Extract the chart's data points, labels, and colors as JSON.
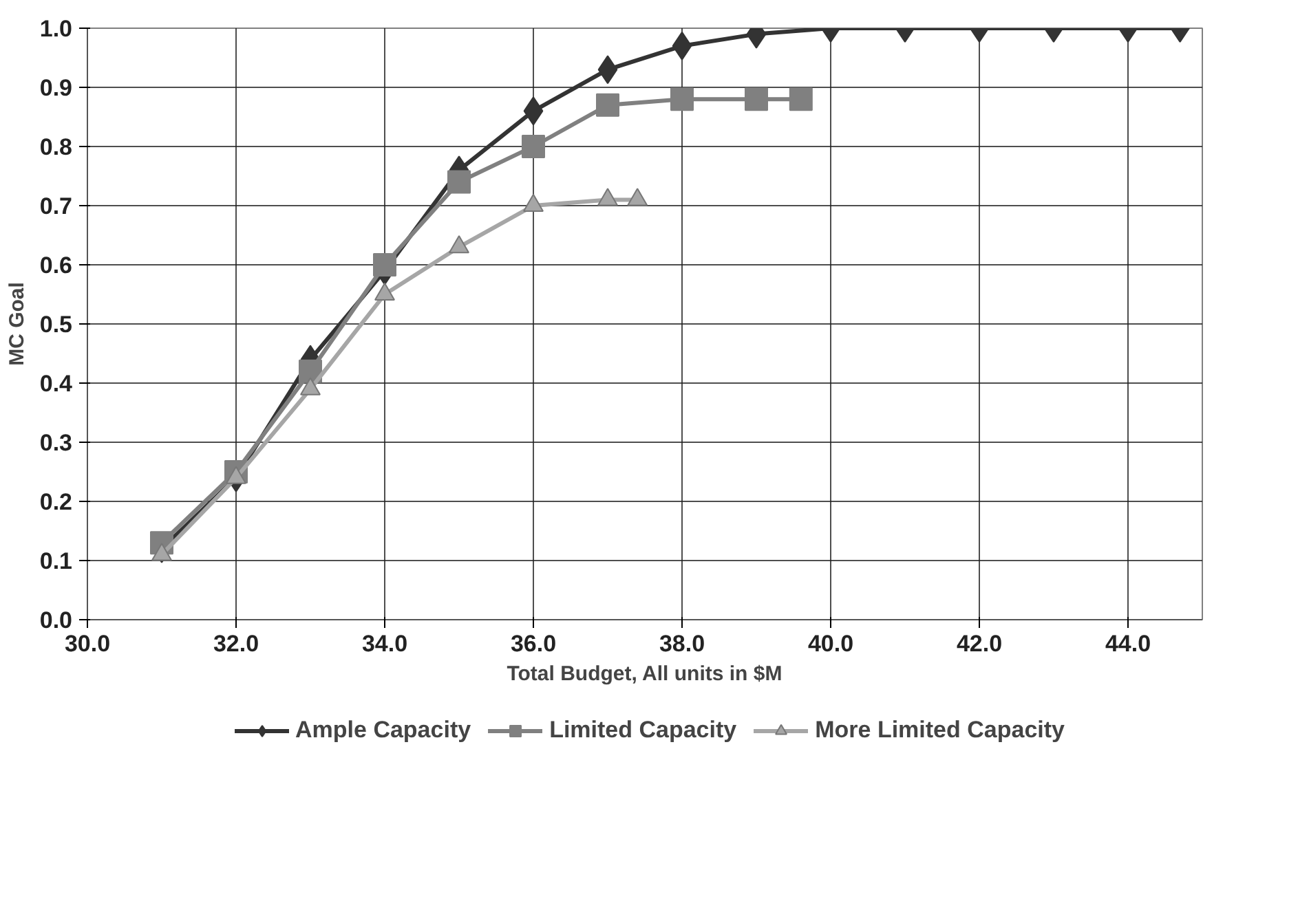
{
  "chart_data": {
    "type": "line",
    "xlabel": "Total Budget, All units in $M",
    "ylabel": "MC Goal",
    "xlim": [
      30,
      45
    ],
    "ylim": [
      0,
      1
    ],
    "xticks": [
      {
        "value": 30,
        "label": "30.0"
      },
      {
        "value": 32,
        "label": "32.0"
      },
      {
        "value": 34,
        "label": "34.0"
      },
      {
        "value": 36,
        "label": "36.0"
      },
      {
        "value": 38,
        "label": "38.0"
      },
      {
        "value": 40,
        "label": "40.0"
      },
      {
        "value": 42,
        "label": "42.0"
      },
      {
        "value": 44,
        "label": "44.0"
      }
    ],
    "yticks": [
      {
        "value": 0,
        "label": "0.0"
      },
      {
        "value": 0.1,
        "label": "0.1"
      },
      {
        "value": 0.2,
        "label": "0.2"
      },
      {
        "value": 0.3,
        "label": "0.3"
      },
      {
        "value": 0.4,
        "label": "0.4"
      },
      {
        "value": 0.5,
        "label": "0.5"
      },
      {
        "value": 0.6,
        "label": "0.6"
      },
      {
        "value": 0.7,
        "label": "0.7"
      },
      {
        "value": 0.8,
        "label": "0.8"
      },
      {
        "value": 0.9,
        "label": "0.9"
      },
      {
        "value": 1,
        "label": "1.0"
      }
    ],
    "grid": true,
    "legend": "bottom",
    "line_style": "solid",
    "series": [
      {
        "name": "Ample Capacity",
        "color": "#333333",
        "marker": "diamond",
        "x": [
          31,
          32,
          33,
          34,
          35,
          36,
          37,
          38,
          39,
          40,
          41,
          42,
          43,
          44,
          44.7
        ],
        "values": [
          0.12,
          0.24,
          0.44,
          0.59,
          0.76,
          0.86,
          0.93,
          0.97,
          0.99,
          1.0,
          1.0,
          1.0,
          1.0,
          1.0,
          1.0
        ]
      },
      {
        "name": "Limited Capacity",
        "color": "#808080",
        "marker": "square",
        "x": [
          31,
          32,
          33,
          34,
          35,
          36,
          37,
          38,
          39,
          39.6
        ],
        "values": [
          0.13,
          0.25,
          0.42,
          0.6,
          0.74,
          0.8,
          0.87,
          0.88,
          0.88,
          0.88
        ]
      },
      {
        "name": "More Limited Capacity",
        "color": "#a6a6a6",
        "marker": "triangle",
        "x": [
          31,
          32,
          33,
          34,
          35,
          36,
          37,
          37.4
        ],
        "values": [
          0.11,
          0.24,
          0.39,
          0.55,
          0.63,
          0.7,
          0.71,
          0.71
        ]
      }
    ]
  }
}
